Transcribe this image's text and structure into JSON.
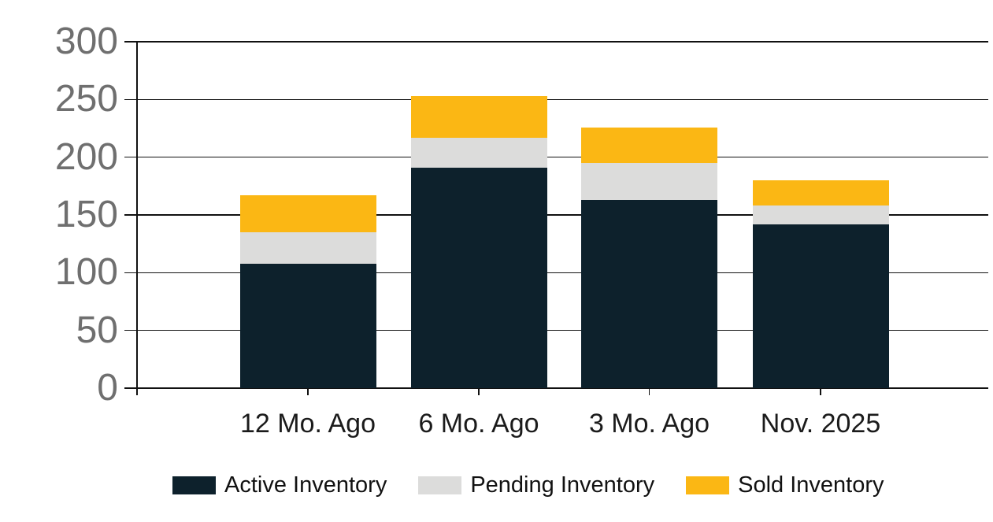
{
  "chart_data": {
    "type": "bar",
    "stacked": true,
    "title": "",
    "xlabel": "",
    "ylabel": "",
    "categories": [
      "12 Mo. Ago",
      "6 Mo. Ago",
      "3 Mo. Ago",
      "Nov. 2025"
    ],
    "series": [
      {
        "name": "Active Inventory",
        "color": "#0d212c",
        "values": [
          108,
          191,
          163,
          142
        ]
      },
      {
        "name": "Pending Inventory",
        "color": "#dcdcdb",
        "values": [
          27,
          26,
          32,
          16
        ]
      },
      {
        "name": "Sold Inventory",
        "color": "#fbb714",
        "values": [
          32,
          36,
          31,
          22
        ]
      }
    ],
    "stack_totals": [
      167,
      253,
      226,
      180
    ],
    "ylim": [
      0,
      300
    ],
    "yticks": [
      0,
      50,
      100,
      150,
      200,
      250,
      300
    ],
    "grid": "horizontal",
    "legend_position": "bottom",
    "colors": {
      "axis_line": "#111111",
      "y_tick_label": "#6f6f6f",
      "x_tick_label": "#1b1b1b",
      "background": "#ffffff"
    }
  }
}
